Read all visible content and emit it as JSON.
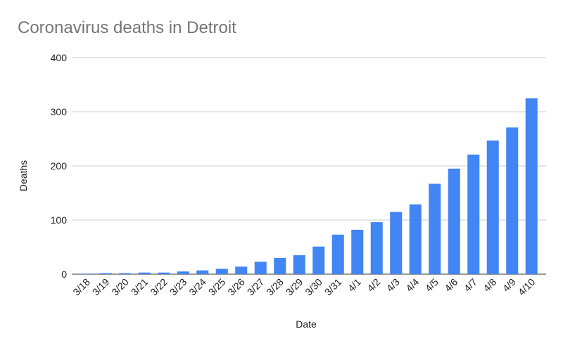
{
  "chart_data": {
    "type": "bar",
    "title": "Coronavirus deaths in Detroit",
    "xlabel": "Date",
    "ylabel": "Deaths",
    "ylim": [
      0,
      400
    ],
    "yticks": [
      0,
      100,
      200,
      300,
      400
    ],
    "grid": true,
    "legend": "none",
    "bar_color": "#4285f4",
    "categories": [
      "3/18",
      "3/19",
      "3/20",
      "3/21",
      "3/22",
      "3/23",
      "3/24",
      "3/25",
      "3/26",
      "3/27",
      "3/28",
      "3/29",
      "3/30",
      "3/31",
      "4/1",
      "4/2",
      "4/3",
      "4/4",
      "4/5",
      "4/6",
      "4/7",
      "4/8",
      "4/9",
      "4/10"
    ],
    "values": [
      1,
      2,
      2,
      3,
      3,
      5,
      7,
      10,
      14,
      23,
      30,
      35,
      51,
      73,
      82,
      96,
      115,
      129,
      167,
      195,
      221,
      247,
      271,
      325
    ]
  }
}
